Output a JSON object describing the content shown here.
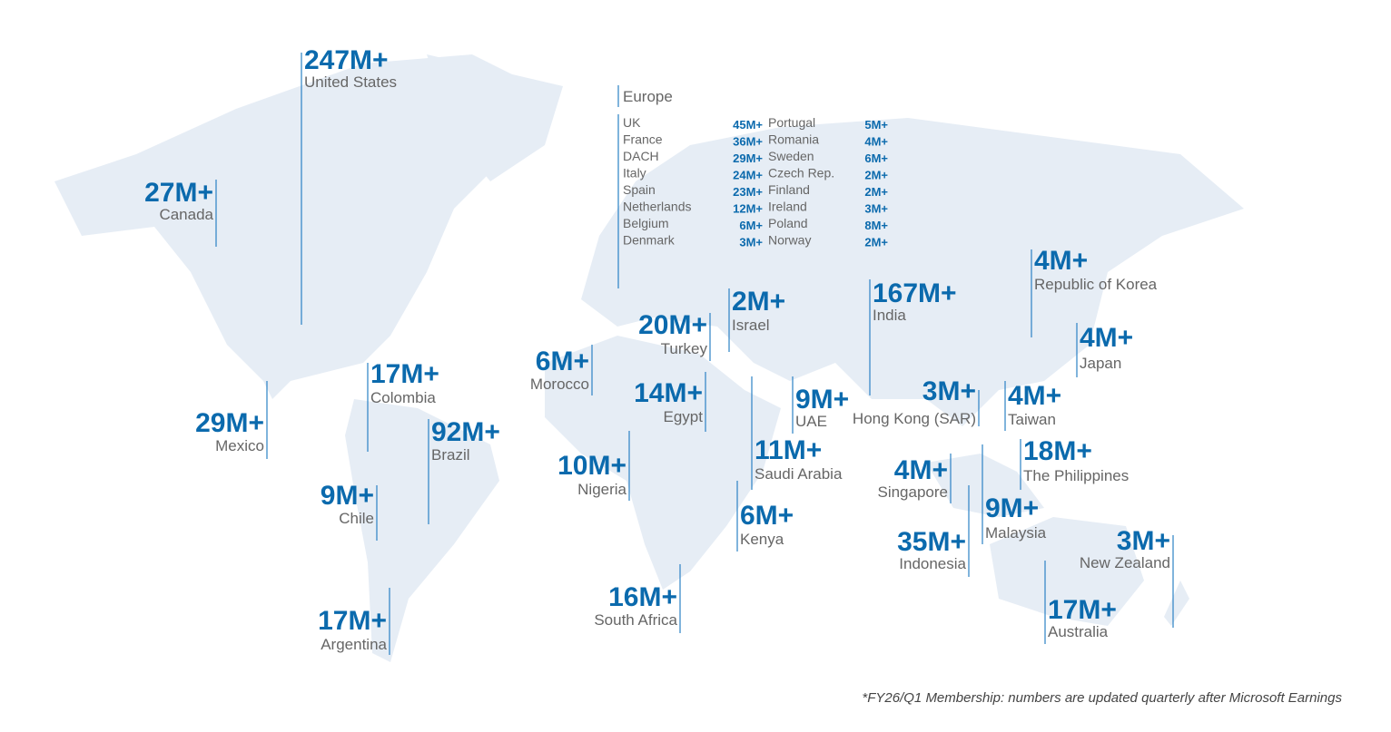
{
  "regions": [
    {
      "value": "247M+",
      "name": "United States"
    },
    {
      "value": "27M+",
      "name": "Canada"
    },
    {
      "value": "29M+",
      "name": "Mexico"
    },
    {
      "value": "17M+",
      "name": "Colombia"
    },
    {
      "value": "92M+",
      "name": "Brazil"
    },
    {
      "value": "9M+",
      "name": "Chile"
    },
    {
      "value": "17M+",
      "name": "Argentina"
    },
    {
      "value": "6M+",
      "name": "Morocco"
    },
    {
      "value": "20M+",
      "name": "Turkey"
    },
    {
      "value": "2M+",
      "name": "Israel"
    },
    {
      "value": "14M+",
      "name": "Egypt"
    },
    {
      "value": "10M+",
      "name": "Nigeria"
    },
    {
      "value": "11M+",
      "name": "Saudi Arabia"
    },
    {
      "value": "9M+",
      "name": "UAE"
    },
    {
      "value": "6M+",
      "name": "Kenya"
    },
    {
      "value": "16M+",
      "name": "South Africa"
    },
    {
      "value": "167M+",
      "name": "India"
    },
    {
      "value": "3M+",
      "name": "Hong Kong (SAR)"
    },
    {
      "value": "4M+",
      "name": "Republic of Korea"
    },
    {
      "value": "4M+",
      "name": "Japan"
    },
    {
      "value": "4M+",
      "name": "Taiwan"
    },
    {
      "value": "18M+",
      "name": "The Philippines"
    },
    {
      "value": "4M+",
      "name": "Singapore"
    },
    {
      "value": "9M+",
      "name": "Malaysia"
    },
    {
      "value": "35M+",
      "name": "Indonesia"
    },
    {
      "value": "3M+",
      "name": "New Zealand"
    },
    {
      "value": "17M+",
      "name": "Australia"
    }
  ],
  "europe": {
    "title": "Europe",
    "rows": [
      {
        "name": "UK",
        "value": "45M+"
      },
      {
        "name": "France",
        "value": "36M+"
      },
      {
        "name": "DACH",
        "value": "29M+"
      },
      {
        "name": "Italy",
        "value": "24M+"
      },
      {
        "name": "Spain",
        "value": "23M+"
      },
      {
        "name": "Netherlands",
        "value": "12M+"
      },
      {
        "name": "Belgium",
        "value": "6M+"
      },
      {
        "name": "Denmark",
        "value": "3M+"
      },
      {
        "name": "Portugal",
        "value": "5M+"
      },
      {
        "name": "Romania",
        "value": "4M+"
      },
      {
        "name": "Sweden",
        "value": "6M+"
      },
      {
        "name": "Czech Rep.",
        "value": "2M+"
      },
      {
        "name": "Finland",
        "value": "2M+"
      },
      {
        "name": "Ireland",
        "value": "3M+"
      },
      {
        "name": "Poland",
        "value": "8M+"
      },
      {
        "name": "Norway",
        "value": "2M+"
      }
    ]
  },
  "footnote": "*FY26/Q1 Membership: numbers are updated quarterly after Microsoft Earnings"
}
